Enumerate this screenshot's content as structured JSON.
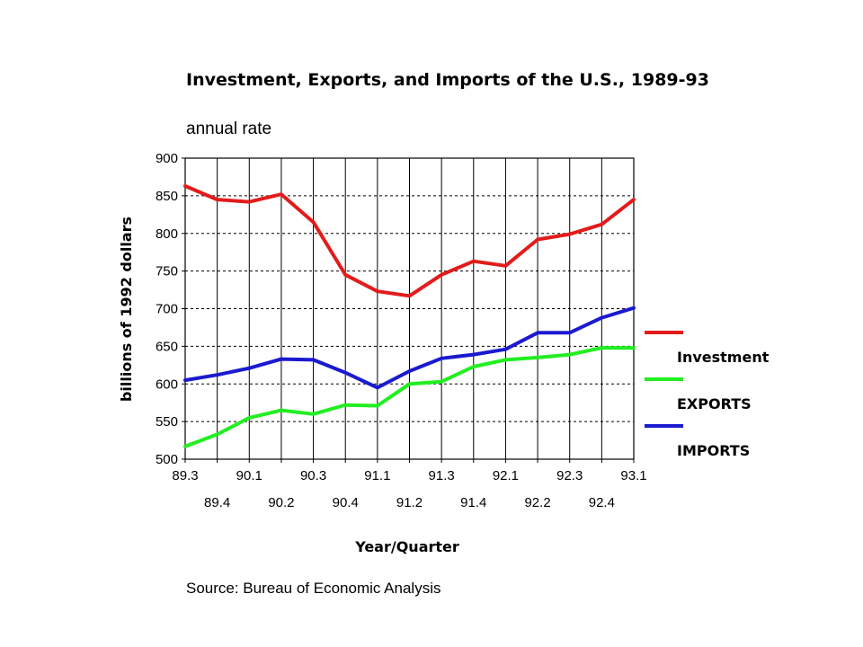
{
  "chart_data": {
    "type": "line",
    "title": "Investment, Exports, and Imports of the U.S., 1989-93",
    "subtitle": "annual rate",
    "xlabel": "Year/Quarter",
    "ylabel": "billions of 1992 dollars",
    "source": "Source: Bureau of Economic Analysis",
    "categories": [
      "89.3",
      "89.4",
      "90.1",
      "90.2",
      "90.3",
      "90.4",
      "91.1",
      "91.2",
      "91.3",
      "91.4",
      "92.1",
      "92.2",
      "92.3",
      "92.4",
      "93.1"
    ],
    "ylim": [
      500,
      900
    ],
    "yticks": [
      500,
      550,
      600,
      650,
      700,
      750,
      800,
      850,
      900
    ],
    "grid": true,
    "legend_position": "right",
    "series": [
      {
        "name": "Investment",
        "color": "#e31b1b",
        "values": [
          863,
          845,
          842,
          852,
          815,
          745,
          723,
          717,
          745,
          763,
          757,
          792,
          799,
          812,
          845
        ]
      },
      {
        "name": "EXPORTS",
        "color": "#22ee22",
        "values": [
          517,
          533,
          555,
          565,
          560,
          572,
          571,
          600,
          603,
          623,
          632,
          635,
          639,
          648,
          648
        ]
      },
      {
        "name": "IMPORTS",
        "color": "#1a1ad0",
        "values": [
          605,
          612,
          621,
          633,
          632,
          615,
          595,
          617,
          634,
          639,
          646,
          668,
          668,
          688,
          701
        ]
      }
    ]
  }
}
